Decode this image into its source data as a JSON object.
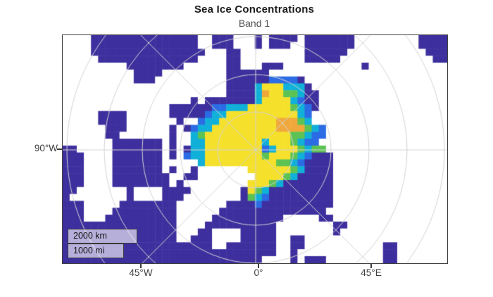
{
  "title": "Sea Ice Concentrations",
  "subtitle": "Band 1",
  "axes": {
    "y_ticks": [
      {
        "label": "90°W"
      }
    ],
    "x_ticks": [
      {
        "label": "45°W"
      },
      {
        "label": "0°"
      },
      {
        "label": "45°E"
      }
    ]
  },
  "scalebar": {
    "km": "2000 km",
    "mi": "1000 mi"
  },
  "colors": {
    "axis": "#3f3f3f",
    "title_text": "#1a1a1a",
    "subtitle_text": "#4f4f4f",
    "tick_text": "#3d3d3d",
    "ocean": "#3e2f9e",
    "land": "#ffffff",
    "ice_low": "#2b6be4",
    "ice_mid": "#10b0d8",
    "ice_high": "#f5e02b",
    "graticule": "#d4d4d4"
  },
  "map": {
    "legend": "grid cells: . = land(white), o = open water(dark purple-blue), b = low ice(blue), c = ice(cyan), g = ice(green), y = high ice(yellow), n = ice(orange)",
    "palette": {
      ".": "#ffffff",
      "o": "#3e2f9e",
      "b": "#2b6be4",
      "c": "#10b0d8",
      "g": "#5cc253",
      "y": "#f5e02b",
      "n": "#f0a83b"
    },
    "grid_rows": [
      "....ooooooooooooooo..ooo...o.oooo.ooooooo.........oooo",
      "....ooooooooooooooo..ooo...o.ooo..ooooooo.........oooo",
      "....oooooooooooooooo...oo.........oooooo...........ooo",
      ".....oooooooooooooo....oo.........ooooo.............oo",
      ".........oooooooo......oo...ooo...........o...........",
      "..........oooo.........oooooo.........................",
      "..........ooo..........oooooobbbbo....................",
      ".......................oooocyyyccco...................",
      ".......................oooocnyyggcoo..................",
      "..................o.ooooooocyyyycboo..................",
      "...............oooooobbcccyyyyyygcbo..................",
      ".....oooo......ooooobccyyyyyyyyyycb...................",
      ".....oooo.......o..bccyyyyyyyynnngc...................",
      "......ooo......o.obccyyyyyyyyynnnngcb.................",
      "......oo.......o..cgyyyyyyyyyyyyggcbb.................",
      ".......ooooooo.o..ccyyyyyyyycyyygcbb..................",
      "oo.....ooooooo.o.occyyyyyyyybcyyygcgg.................",
      "ooo....ooooooo.o.bccyyyyyyyygyyygcbooo................",
      "ooo....ooooooo.....cyyyyyyyyyyggcboooo................",
      "ooo....ooooooo.o..o.......yyyyyygcoooo................",
      "ooo....oooooooo..oo........yyyygcooooo................",
      "ooo....oooooooo.o.........yyygcooooooo................",
      "oo.......o....oooo.......oygcooooooooo................",
      "o........o....ooo........ogcbooooooooo................",
      "ooo.....oooooooo.......ooooboooooooooo................",
      "ooo....ooooooooo......ooooooooooooooo.................",
      "ooo...oooooooooo.....oooooooooo.....oo................",
      "oooooooooooooooo....oooooooooo........oo..............",
      "oooooooooooooooo...oo....ooooo........o...............",
      "oooooooooooooooo..ooo....ooooo..oo....................",
      "ooooooooooooooooooooo..ooooooo..oo...........oo.......",
      "oooooooooooooooooooooooooooooo..o............oo.......",
      "oooooooooooooooooooooooooooo....o.ooo........oo......."
    ],
    "graticule": {
      "color": "#d4d4d4",
      "pole_x": 274,
      "pole_y": 163,
      "circle_radii": [
        54,
        107,
        161,
        215,
        268,
        322
      ],
      "radial_step_deg": 45
    }
  }
}
